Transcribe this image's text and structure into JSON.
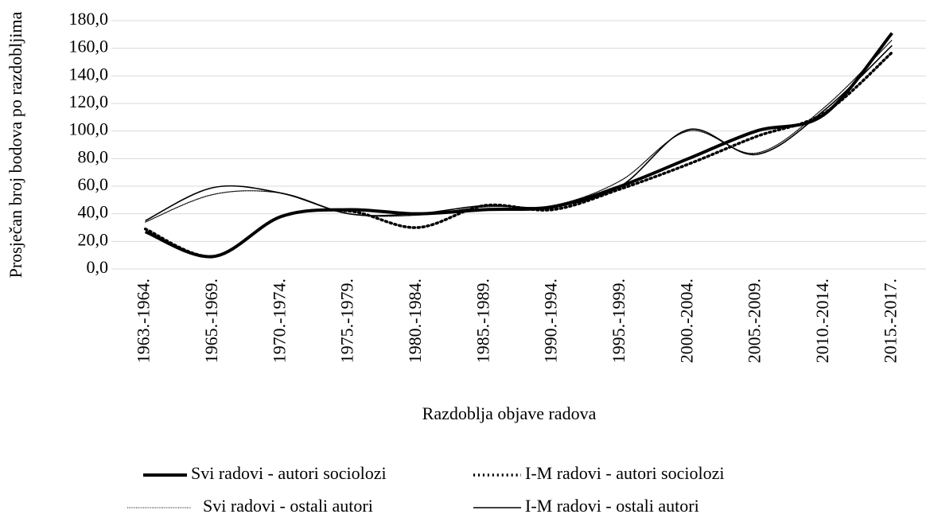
{
  "chart_data": {
    "type": "line",
    "y_axis_label": "Prosječan broj bodova po razdobljima",
    "x_axis_label": "Razdoblja objave radova",
    "categories": [
      "1963.-1964.",
      "1965.-1969.",
      "1970.-1974.",
      "1975.-1979.",
      "1980.-1984.",
      "1985.-1989.",
      "1990.-1994.",
      "1995.-1999.",
      "2000.-2004.",
      "2005.-2009.",
      "2010.-2014.",
      "2015.-2017."
    ],
    "series": [
      {
        "name": "Svi radovi - autori sociolozi",
        "color": "#000000",
        "line_width": 4,
        "dash": "solid",
        "values": [
          27,
          9,
          38,
          43,
          40,
          43,
          45,
          60,
          80,
          100,
          112,
          171
        ]
      },
      {
        "name": "I-M radovi - autori sociolozi",
        "color": "#000000",
        "line_width": 3.5,
        "dash": "dotted",
        "values": [
          29,
          9,
          38,
          42,
          30,
          46,
          43,
          58,
          76,
          96,
          113,
          157
        ]
      },
      {
        "name": "Svi radovi - ostali autori",
        "color": "#000000",
        "line_width": 1.3,
        "dash": "dotted",
        "values": [
          34,
          54,
          55,
          40,
          39,
          45,
          46,
          64,
          100,
          84,
          117,
          166
        ]
      },
      {
        "name": "I-M radovi - ostali autori",
        "color": "#000000",
        "line_width": 1.6,
        "dash": "solid",
        "values": [
          35,
          59,
          55,
          40,
          40,
          46,
          45,
          60,
          101,
          83,
          115,
          162
        ]
      }
    ],
    "ylim": [
      0,
      180
    ],
    "yticks": [
      {
        "value": 0,
        "label": "0,0"
      },
      {
        "value": 20,
        "label": "20,0"
      },
      {
        "value": 40,
        "label": "40,0"
      },
      {
        "value": 60,
        "label": "60,0"
      },
      {
        "value": 80,
        "label": "80,0"
      },
      {
        "value": 100,
        "label": "100,0"
      },
      {
        "value": 120,
        "label": "120,0"
      },
      {
        "value": 140,
        "label": "140,0"
      },
      {
        "value": 160,
        "label": "160,0"
      },
      {
        "value": 180,
        "label": "180,0"
      }
    ],
    "grid": true,
    "legend": "bottom"
  }
}
